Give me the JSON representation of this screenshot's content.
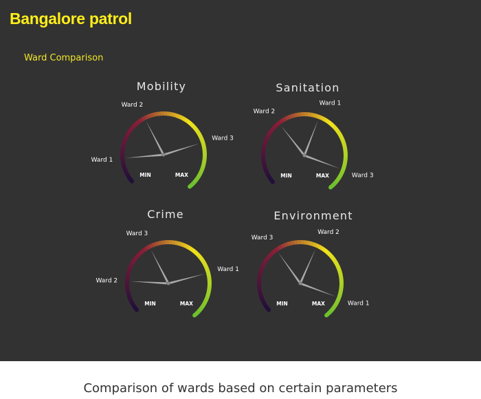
{
  "header": {
    "title": "Bangalore patrol",
    "subtitle": "Ward Comparison"
  },
  "caption": "Comparison of wards based on certain parameters",
  "colors": {
    "background": "#323232",
    "title": "#ffee1a",
    "needle": "#a9a9a9",
    "arc_low": "#1e0f3a",
    "arc_mid_low": "#8a1f38",
    "arc_mid_high": "#f3e21c",
    "arc_high": "#6abf2f"
  },
  "scale": {
    "min_label": "MIN",
    "max_label": "MAX",
    "min": 0,
    "max": 100
  },
  "chart_data": [
    {
      "type": "gauge",
      "title": "Mobility",
      "series": [
        {
          "name": "Ward 1",
          "value": 13
        },
        {
          "name": "Ward 2",
          "value": 38
        },
        {
          "name": "Ward 3",
          "value": 75
        }
      ]
    },
    {
      "type": "gauge",
      "title": "Sanitation",
      "series": [
        {
          "name": "Ward 2",
          "value": 34
        },
        {
          "name": "Ward 1",
          "value": 56
        },
        {
          "name": "Ward 3",
          "value": 89
        }
      ]
    },
    {
      "type": "gauge",
      "title": "Crime",
      "series": [
        {
          "name": "Ward 2",
          "value": 16
        },
        {
          "name": "Ward 3",
          "value": 38
        },
        {
          "name": "Ward 1",
          "value": 76
        }
      ]
    },
    {
      "type": "gauge",
      "title": "Environment",
      "series": [
        {
          "name": "Ward 3",
          "value": 35
        },
        {
          "name": "Ward 2",
          "value": 57
        },
        {
          "name": "Ward 1",
          "value": 89
        }
      ]
    }
  ]
}
